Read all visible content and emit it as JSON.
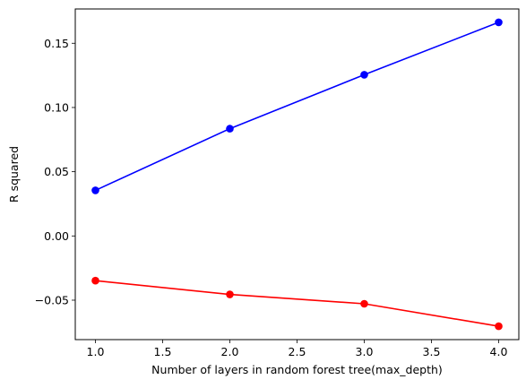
{
  "chart_data": {
    "type": "line",
    "title": "",
    "xlabel": "Number of layers in random forest tree(max_depth)",
    "ylabel": "R squared",
    "x": [
      1.0,
      2.0,
      3.0,
      4.0
    ],
    "xlim": [
      0.85,
      4.15
    ],
    "ylim": [
      -0.0807,
      0.1767
    ],
    "xticks": [
      1.0,
      1.5,
      2.0,
      2.5,
      3.0,
      3.5,
      4.0
    ],
    "xtick_labels": [
      "1.0",
      "1.5",
      "2.0",
      "2.5",
      "3.0",
      "3.5",
      "4.0"
    ],
    "yticks": [
      -0.05,
      0.0,
      0.05,
      0.1,
      0.15
    ],
    "ytick_labels": [
      "−0.05",
      "0.00",
      "0.05",
      "0.10",
      "0.15"
    ],
    "grid": false,
    "legend": false,
    "series": [
      {
        "color": "#0000ff",
        "marker": "circle",
        "values": [
          0.0355,
          0.0835,
          0.1255,
          0.1663
        ]
      },
      {
        "color": "#ff0000",
        "marker": "circle",
        "values": [
          -0.0348,
          -0.0455,
          -0.0528,
          -0.0703
        ]
      }
    ]
  }
}
